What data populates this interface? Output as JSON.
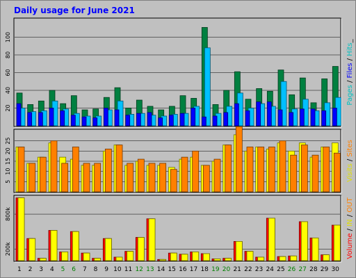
{
  "chart_data": {
    "type": "bar",
    "title": "Daily usage for June 2021",
    "days": [
      "1",
      "2",
      "3",
      "4",
      "5",
      "6",
      "7",
      "8",
      "9",
      "10",
      "11",
      "12",
      "13",
      "14",
      "15",
      "16",
      "17",
      "18",
      "19",
      "20",
      "21",
      "22",
      "23",
      "24",
      "25",
      "26",
      "27",
      "28",
      "29",
      "30"
    ],
    "weekend_days": [
      "5",
      "6",
      "12",
      "13",
      "19",
      "20",
      "26",
      "27"
    ],
    "panels": [
      {
        "id": "pages-files-hits",
        "ylim": [
          0,
          120
        ],
        "yticks": [
          20,
          40,
          60,
          80,
          100
        ],
        "series": [
          {
            "name": "Hits",
            "color": "#008040",
            "values": [
              37,
              24,
              28,
              40,
              25,
              34,
              18,
              19,
              32,
              43,
              20,
              29,
              22,
              18,
              22,
              34,
              31,
              111,
              24,
              40,
              61,
              30,
              42,
              39,
              63,
              35,
              54,
              26,
              53,
              67
            ]
          },
          {
            "name": "Files",
            "color": "#00c0ff",
            "values": [
              20,
              16,
              17,
              28,
              19,
              14,
              11,
              11,
              18,
              28,
              13,
              14,
              12,
              11,
              13,
              14,
              22,
              88,
              14,
              22,
              37,
              20,
              25,
              22,
              50,
              19,
              30,
              17,
              26,
              32
            ]
          },
          {
            "name": "Pages",
            "color": "#0000ff",
            "values": [
              25,
              15,
              15,
              20,
              17,
              12,
              10,
              9,
              20,
              18,
              12,
              14,
              15,
              9,
              12,
              14,
              20,
              10,
              11,
              15,
              25,
              17,
              27,
              27,
              18,
              15,
              19,
              19,
              17,
              20
            ]
          }
        ],
        "legend": [
          {
            "text": "Pages",
            "color": "#00c0c0"
          },
          {
            "text": " / ",
            "color": "#000000"
          },
          {
            "text": "Files",
            "color": "#0000ff"
          },
          {
            "text": " / ",
            "color": "#000000"
          },
          {
            "text": "Hits",
            "color": "#00c0c0"
          },
          {
            "text": "_",
            "color": "#000000"
          }
        ]
      },
      {
        "id": "visits-sites",
        "ylim": [
          0,
          30
        ],
        "yticks": [
          5,
          10,
          15,
          20,
          25
        ],
        "series": [
          {
            "name": "Sites",
            "color": "#ffff00",
            "values": [
              22,
              14,
              17,
              24,
              17,
              16,
              13,
              13,
              20,
              23,
              13,
              15,
              13,
              13,
              12,
              16,
              17,
              13,
              15,
              23,
              28,
              20,
              22,
              21,
              24,
              20,
              24,
              17,
              22,
              24
            ]
          },
          {
            "name": "Visits",
            "color": "#ff8000",
            "values": [
              22,
              14,
              17,
              25,
              14,
              22,
              14,
              14,
              21,
              23,
              14,
              16,
              14,
              14,
              11,
              17,
              20,
              13,
              16,
              23,
              32,
              22,
              22,
              22,
              25,
              18,
              23,
              18,
              22,
              19
            ]
          }
        ],
        "legend": [
          {
            "text": "Visits",
            "color": "#e0e000"
          },
          {
            "text": " / ",
            "color": "#000000"
          },
          {
            "text": "Sites",
            "color": "#ff8000"
          }
        ]
      },
      {
        "id": "volume",
        "ylim": [
          0,
          1100
        ],
        "ytick_labels": [
          {
            "value": 200,
            "label": "200k"
          },
          {
            "value": 800,
            "label": "800k"
          }
        ],
        "series": [
          {
            "name": "Volume",
            "color": "#ff0000",
            "values": [
              1080,
              380,
              40,
              520,
              150,
              500,
              130,
              40,
              380,
              60,
              160,
              400,
              720,
              20,
              130,
              110,
              150,
              120,
              30,
              40,
              330,
              160,
              60,
              730,
              70,
              80,
              670,
              390,
              100,
              610
            ]
          },
          {
            "name": "IN",
            "color": "#ff8000",
            "values": [
              1080,
              380,
              40,
              520,
              150,
              500,
              130,
              40,
              380,
              60,
              160,
              400,
              720,
              20,
              130,
              110,
              150,
              120,
              30,
              40,
              330,
              160,
              60,
              730,
              70,
              80,
              670,
              390,
              100,
              610
            ]
          },
          {
            "name": "OUT",
            "color": "#ffff00",
            "values": [
              1080,
              380,
              40,
              520,
              150,
              500,
              130,
              40,
              380,
              60,
              160,
              400,
              720,
              20,
              130,
              110,
              150,
              120,
              30,
              40,
              330,
              160,
              60,
              730,
              70,
              80,
              670,
              390,
              100,
              610
            ]
          }
        ],
        "legend": [
          {
            "text": "Volume",
            "color": "#ff0000"
          },
          {
            "text": " / ",
            "color": "#000000"
          },
          {
            "text": "IN",
            "color": "#e0e000"
          },
          {
            "text": " / ",
            "color": "#000000"
          },
          {
            "text": "OUT",
            "color": "#ff8000"
          }
        ]
      }
    ]
  }
}
